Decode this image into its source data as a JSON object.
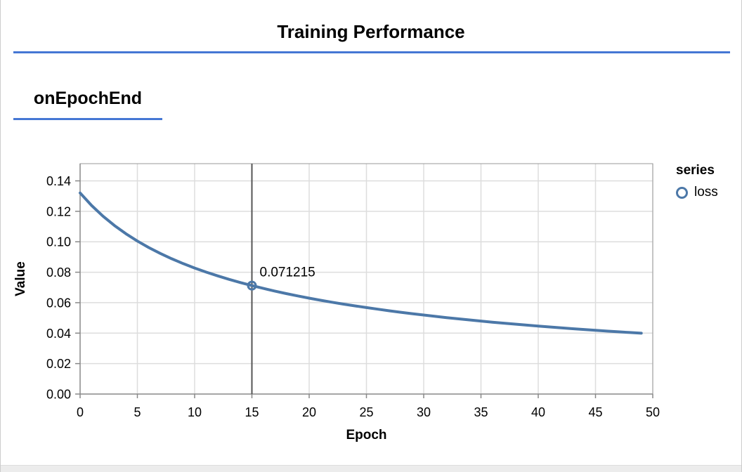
{
  "header": {
    "title": "Training Performance"
  },
  "section": {
    "heading": "onEpochEnd"
  },
  "colors": {
    "accent_blue": "#4577d4",
    "line": "#4c78a8",
    "grid": "#dddddd",
    "plot_border": "#999999",
    "axis": "#888888",
    "cursor_rule": "#555555",
    "text": "#000000",
    "bottom_edge": "#ececec"
  },
  "chart_data": {
    "type": "line",
    "title": "",
    "xlabel": "Epoch",
    "ylabel": "Value",
    "xlim": [
      0,
      50
    ],
    "ylim": [
      0,
      0.1513
    ],
    "x_ticks": [
      0,
      5,
      10,
      15,
      20,
      25,
      30,
      35,
      40,
      45,
      50
    ],
    "x_tick_labels": [
      "0",
      "5",
      "10",
      "15",
      "20",
      "25",
      "30",
      "35",
      "40",
      "45",
      "50"
    ],
    "y_ticks": [
      0,
      0.02,
      0.04,
      0.06,
      0.08,
      0.1,
      0.12,
      0.14
    ],
    "y_tick_labels": [
      "0.00",
      "0.02",
      "0.04",
      "0.06",
      "0.08",
      "0.10",
      "0.12",
      "0.14"
    ],
    "grid": true,
    "x": [
      0,
      1,
      2,
      3,
      4,
      5,
      6,
      7,
      8,
      9,
      10,
      11,
      12,
      13,
      14,
      15,
      16,
      17,
      18,
      19,
      20,
      21,
      22,
      23,
      24,
      25,
      26,
      27,
      28,
      29,
      30,
      31,
      32,
      33,
      34,
      35,
      36,
      37,
      38,
      39,
      40,
      41,
      42,
      43,
      44,
      45,
      46,
      47,
      48,
      49
    ],
    "series": [
      {
        "name": "loss",
        "color": "#4c78a8",
        "values": [
          0.13205,
          0.12384,
          0.11679,
          0.11065,
          0.10525,
          0.10047,
          0.0962,
          0.09234,
          0.08885,
          0.08568,
          0.08277,
          0.08009,
          0.07762,
          0.07533,
          0.0732,
          0.071215,
          0.06936,
          0.06761,
          0.06598,
          0.06443,
          0.06298,
          0.0616,
          0.0603,
          0.05906,
          0.05788,
          0.05677,
          0.0557,
          0.05468,
          0.05371,
          0.05277,
          0.05188,
          0.05102,
          0.0502,
          0.04941,
          0.04865,
          0.04792,
          0.04721,
          0.04653,
          0.04588,
          0.04525,
          0.04463,
          0.04404,
          0.04347,
          0.04291,
          0.04238,
          0.04186,
          0.04135,
          0.04086,
          0.04039,
          0.03993
        ]
      }
    ],
    "legend": {
      "title": "series",
      "position": "right",
      "items": [
        {
          "label": "loss",
          "color": "#4c78a8"
        }
      ]
    },
    "cursor": {
      "x": 15,
      "value": 0.071215,
      "label": "0.071215"
    }
  }
}
